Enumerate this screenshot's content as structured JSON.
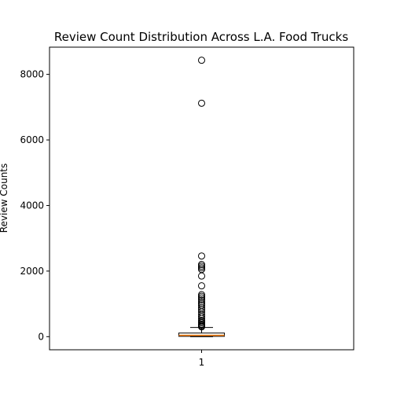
{
  "chart_data": {
    "type": "boxplot",
    "title": "Review Count Distribution Across L.A. Food Trucks",
    "xlabel": "",
    "ylabel": "Review Counts",
    "categories": [
      "1"
    ],
    "ylim": [
      -400,
      8830
    ],
    "yticks": [
      0,
      2000,
      4000,
      6000,
      8000
    ],
    "grid": false,
    "box": {
      "q1": 10,
      "median": 40,
      "q3": 110,
      "whisker_low": 0,
      "whisker_high": 280
    },
    "outliers": [
      8430,
      7120,
      2460,
      2200,
      2150,
      2100,
      2050,
      1850,
      1550,
      1280,
      1230,
      1180,
      1120,
      1060,
      1000,
      950,
      880,
      820,
      750,
      680,
      620,
      560,
      500,
      460,
      420,
      380,
      350,
      320,
      300
    ],
    "colors": {
      "box": "#000000",
      "median": "#ff7f0e",
      "outlier_edge": "#000000"
    }
  }
}
